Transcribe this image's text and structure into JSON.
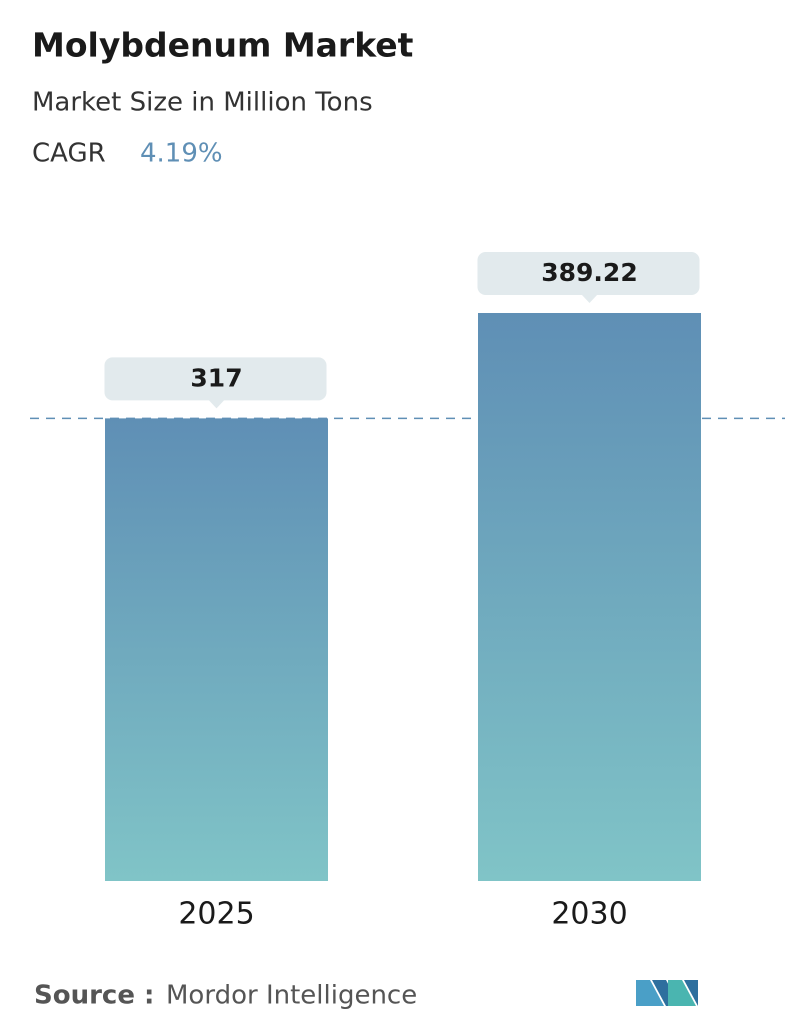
{
  "chart_data": {
    "type": "bar",
    "title": "Molybdenum Market",
    "subtitle": "Market Size in Million Tons",
    "cagr": {
      "label": "CAGR",
      "value": "4.19%"
    },
    "categories": [
      "2025",
      "2030"
    ],
    "values": [
      317,
      389.22
    ],
    "color_top": "#5f8fb5",
    "color_bottom": "#80c4c7",
    "source": {
      "label": "Source :",
      "name": "Mordor Intelligence"
    }
  }
}
